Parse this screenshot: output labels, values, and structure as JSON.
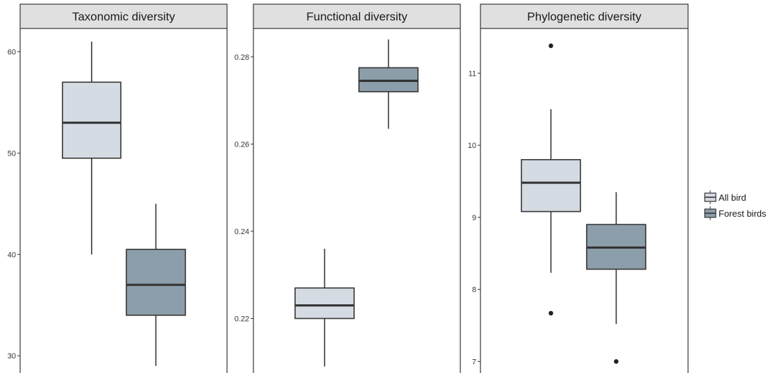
{
  "chart_data": [
    {
      "type": "boxplot",
      "title": "Taxonomic diversity",
      "ylim": [
        28.3,
        62.3
      ],
      "yticks": [
        30,
        40,
        50,
        60
      ],
      "groups": [
        {
          "name": "All bird",
          "whisker_low": 40,
          "q1": 49.5,
          "median": 53,
          "q3": 57,
          "whisker_high": 61,
          "outliers": []
        },
        {
          "name": "Forest birds",
          "whisker_low": 29,
          "q1": 34,
          "median": 37,
          "q3": 40.5,
          "whisker_high": 45,
          "outliers": []
        }
      ]
    },
    {
      "type": "boxplot",
      "title": "Functional diversity",
      "ylim": [
        0.2075,
        0.2865
      ],
      "yticks": [
        0.22,
        0.24,
        0.26,
        0.28
      ],
      "groups": [
        {
          "name": "All bird",
          "whisker_low": 0.209,
          "q1": 0.22,
          "median": 0.223,
          "q3": 0.227,
          "whisker_high": 0.236,
          "outliers": []
        },
        {
          "name": "Forest birds",
          "whisker_low": 0.2635,
          "q1": 0.272,
          "median": 0.2745,
          "q3": 0.2775,
          "whisker_high": 0.284,
          "outliers": []
        }
      ]
    },
    {
      "type": "boxplot",
      "title": "Phylogenetic diversity",
      "ylim": [
        6.84,
        11.62
      ],
      "yticks": [
        7,
        8,
        9,
        10,
        11
      ],
      "groups": [
        {
          "name": "All bird",
          "whisker_low": 8.23,
          "q1": 9.08,
          "median": 9.48,
          "q3": 9.8,
          "whisker_high": 10.5,
          "outliers": [
            11.38,
            7.67
          ]
        },
        {
          "name": "Forest birds",
          "whisker_low": 7.52,
          "q1": 8.28,
          "median": 8.58,
          "q3": 8.9,
          "whisker_high": 9.35,
          "outliers": [
            7.0
          ]
        }
      ]
    }
  ],
  "legend": {
    "placement": "right",
    "items": [
      {
        "label": "All bird",
        "color": "#d4dbe2"
      },
      {
        "label": "Forest birds",
        "color": "#8c9ea9"
      }
    ]
  },
  "colors": {
    "box_stroke": "#333333",
    "strip_fill": "#e0e0e0",
    "panel_border": "#333333"
  }
}
